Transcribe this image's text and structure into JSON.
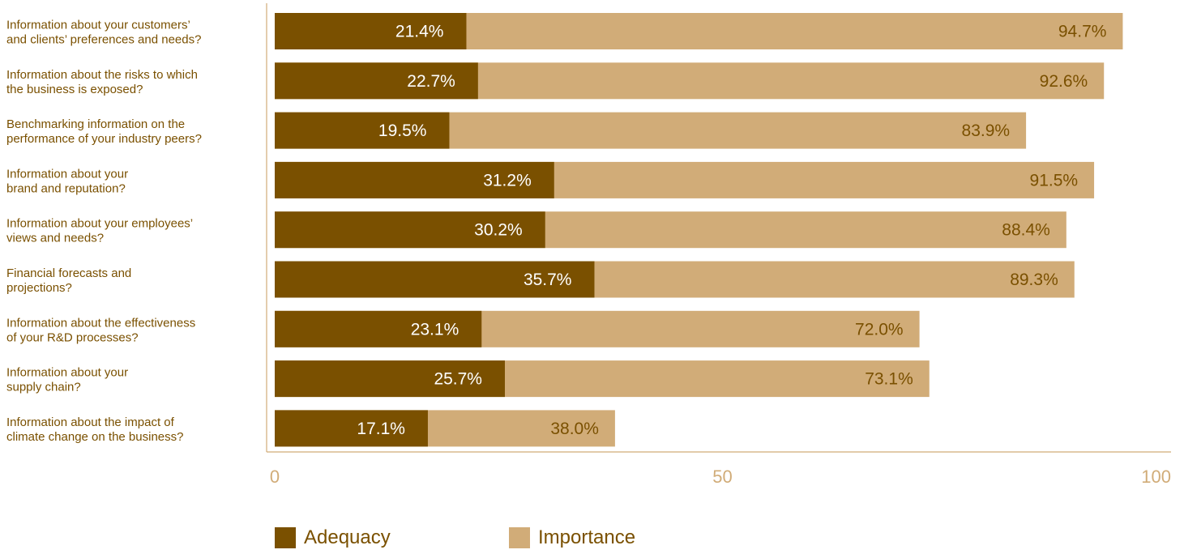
{
  "chart_data": {
    "type": "bar",
    "orientation": "horizontal",
    "categories": [
      [
        "Information about your customers’",
        "and clients’ preferences and needs?"
      ],
      [
        "Information about the risks to which",
        "the business is exposed?"
      ],
      [
        "Benchmarking information on the",
        "performance of your industry peers?"
      ],
      [
        "Information about your",
        "brand and reputation?"
      ],
      [
        "Information about your employees’",
        "views and needs?"
      ],
      [
        "Financial forecasts and",
        "projections?"
      ],
      [
        "Information about the effectiveness",
        "of your R&D processes?"
      ],
      [
        "Information about your",
        "supply chain?"
      ],
      [
        "Information about the impact of",
        "climate change on the business?"
      ]
    ],
    "series": [
      {
        "name": "Adequacy",
        "color": "#7a5000",
        "label_color": "#ffffff",
        "values": [
          21.4,
          22.7,
          19.5,
          31.2,
          30.2,
          35.7,
          23.1,
          25.7,
          17.1
        ],
        "labels": [
          "21.4%",
          "22.7%",
          "19.5%",
          "31.2%",
          "30.2%",
          "35.7%",
          "23.1%",
          "25.7%",
          "17.1%"
        ]
      },
      {
        "name": "Importance",
        "color": "#d1ac78",
        "label_color": "#7a5000",
        "values": [
          94.7,
          92.6,
          83.9,
          91.5,
          88.4,
          89.3,
          72.0,
          73.1,
          38.0
        ],
        "labels": [
          "94.7%",
          "92.6%",
          "83.9%",
          "91.5%",
          "88.4%",
          "89.3%",
          "72.0%",
          "73.1%",
          "38.0%"
        ]
      }
    ],
    "xlim": [
      0,
      100
    ],
    "xticks": [
      0,
      50,
      100
    ],
    "xtick_labels": [
      "0",
      "50",
      "100"
    ],
    "grid": false,
    "legend_position": "bottom"
  },
  "colors": {
    "axis": "#d1ac78",
    "category_text": "#7a5000"
  }
}
